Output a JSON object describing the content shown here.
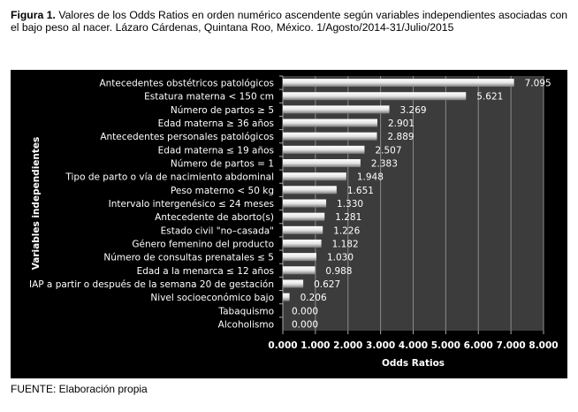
{
  "caption": {
    "label": "Figura 1.",
    "text": " Valores de los Odds Ratios en orden numérico ascendente según variables independientes asociadas con el bajo peso al nacer. Lázaro Cárdenas, Quintana Roo, México. 1/Agosto/2014-31/Julio/2015"
  },
  "footer": "FUENTE: Elaboración propia",
  "chart_data": {
    "type": "bar",
    "orientation": "horizontal",
    "xlabel": "Odds Ratios",
    "ylabel": "Variables independientes",
    "xlim": [
      0,
      8
    ],
    "xticks": [
      "0.000",
      "1.000",
      "2.000",
      "3.000",
      "4.000",
      "5.000",
      "6.000",
      "7.000",
      "8.000"
    ],
    "grid": true,
    "colors": {
      "background": "#000000",
      "plot_area": "#3c3c3c",
      "bar": "#e8e8e8",
      "grid": "#8a8a8a"
    },
    "categories": [
      "Antecedentes  obstétricos patológicos",
      "Estatura materna < 150 cm",
      "Número de partos ≥ 5",
      "Edad materna ≥ 36  años",
      "Antecedentes  personales patológicos",
      "Edad materna  ≤ 19  años",
      "Número de partos = 1",
      "Tipo de parto o vía de nacimiento abdominal",
      "Peso materno < 50 kg",
      "Intervalo intergenésico ≤ 24 meses",
      "Antecedente  de aborto(s)",
      "Estado civil \"no–casada\"",
      "Género femenino del producto",
      "Número de consultas prenatales ≤ 5",
      "Edad a la menarca ≤ 12  años",
      "IAP a partir o después de la semana 20 de gestación",
      "Nivel socioeconómico  bajo",
      "Tabaquismo",
      "Alcoholismo"
    ],
    "values": [
      7.095,
      5.621,
      3.269,
      2.901,
      2.889,
      2.507,
      2.383,
      1.948,
      1.651,
      1.33,
      1.281,
      1.226,
      1.182,
      1.03,
      0.988,
      0.627,
      0.206,
      0.0,
      0.0
    ],
    "data_labels": [
      "7.095",
      "5.621",
      "3.269",
      "2.901",
      "2.889",
      "2.507",
      "2.383",
      "1.948",
      "1.651",
      "1.330",
      "1.281",
      "1.226",
      "1.182",
      "1.030",
      "0.988",
      "0.627",
      "0.206",
      "0.000",
      "0.000"
    ]
  }
}
